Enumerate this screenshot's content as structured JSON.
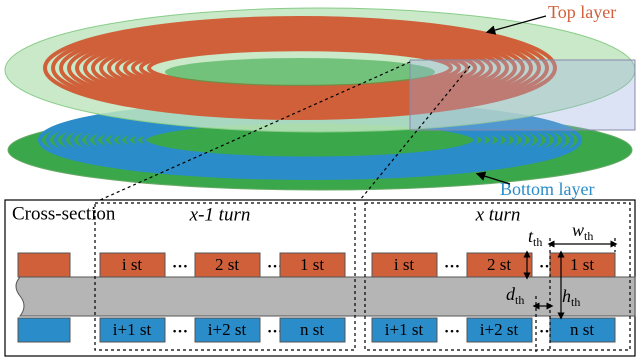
{
  "labels": {
    "top_layer": "Top layer",
    "bottom_layer": "Bottom layer"
  },
  "cross_section": {
    "title": "Cross-section",
    "groups": [
      {
        "label": "x-1 turn",
        "top": [
          "i st",
          "2 st",
          "1 st"
        ],
        "bottom": [
          "i+1 st",
          "i+2 st",
          "n st"
        ]
      },
      {
        "label": "x turn",
        "top": [
          "i st",
          "2 st",
          "1 st"
        ],
        "bottom": [
          "i+1 st",
          "i+2 st",
          "n st"
        ]
      }
    ],
    "dimensions": {
      "t": {
        "symbol": "t",
        "subscript": "th"
      },
      "w": {
        "symbol": "w",
        "subscript": "th"
      },
      "d": {
        "symbol": "d",
        "subscript": "th"
      },
      "h": {
        "symbol": "h",
        "subscript": "th"
      }
    }
  }
}
